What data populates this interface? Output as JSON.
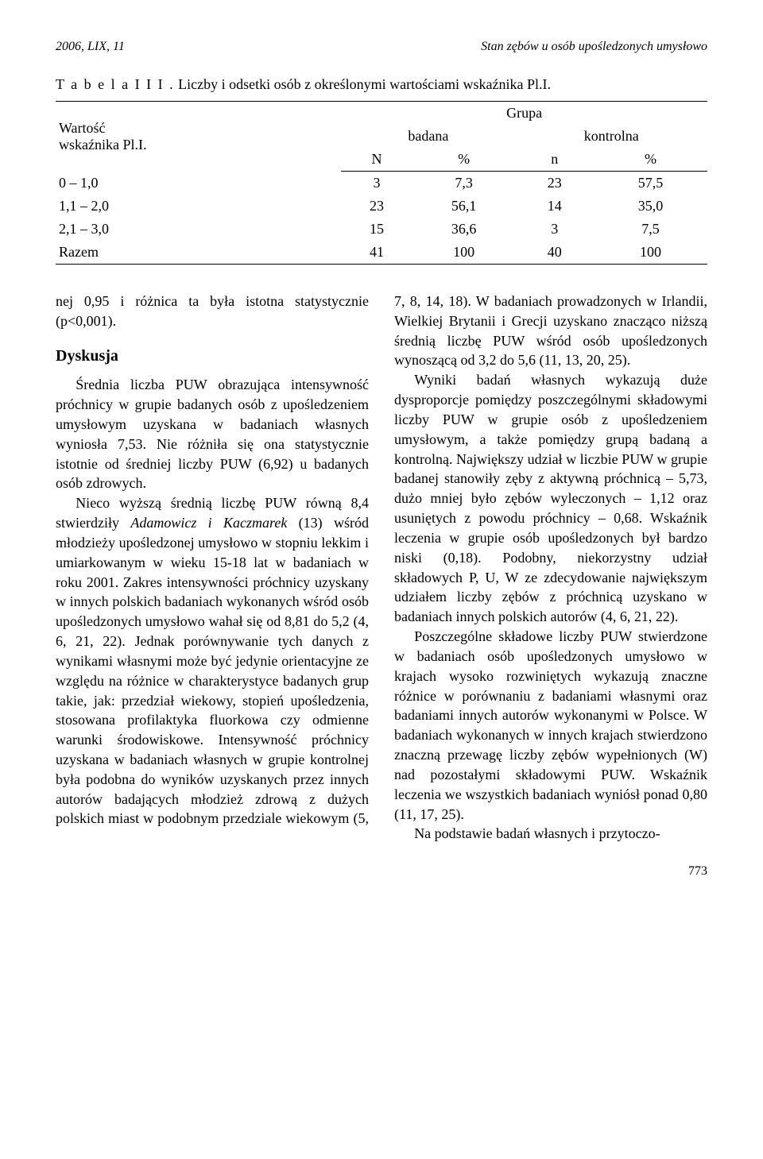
{
  "running_head": {
    "left": "2006, LIX, 11",
    "right": "Stan zębów u osób upośledzonych umysłowo"
  },
  "table": {
    "caption_lead": "T a b e l a  I I I .",
    "caption_rest": " Liczby i odsetki osób z określonymi wartościami wskaźnika Pl.I.",
    "row_label_line1": "Wartość",
    "row_label_line2": "wskaźnika Pl.I.",
    "group_label": "Grupa",
    "col_badana": "badana",
    "col_kontrolna": "kontrolna",
    "sub_N": "N",
    "sub_pct1": "%",
    "sub_n": "n",
    "sub_pct2": "%",
    "rows": [
      {
        "label": "0 – 1,0",
        "N": "3",
        "Npct": "7,3",
        "n": "23",
        "npct": "57,5"
      },
      {
        "label": "1,1 – 2,0",
        "N": "23",
        "Npct": "56,1",
        "n": "14",
        "npct": "35,0"
      },
      {
        "label": "2,1 – 3,0",
        "N": "15",
        "Npct": "36,6",
        "n": "3",
        "npct": "7,5"
      },
      {
        "label": "Razem",
        "N": "41",
        "Npct": "100",
        "n": "40",
        "npct": "100"
      }
    ]
  },
  "body": {
    "lead_fragment": "nej 0,95 i różnica ta była istotna statystycznie (p<0,001).",
    "heading": "Dyskusja",
    "p1a": "Średnia liczba PUW obrazująca intensywność próchnicy w grupie badanych osób z upośledzeniem umysłowym uzyskana w badaniach własnych wyniosła 7,53. Nie różniła się ona statystycznie istotnie od średniej liczby PUW (6,92) u badanych osób zdrowych.",
    "p1b_pre": "Nieco wyższą średnią liczbę PUW równą 8,4 stwierdziły ",
    "p1b_em": "Adamowicz i Kaczmarek",
    "p1b_post": " (13) wśród młodzieży upośledzonej umysłowo w stopniu lekkim i umiarkowanym w wieku 15-18 lat w badaniach w roku 2001. Zakres intensywności próchnicy uzyskany w innych polskich badaniach wykonanych wśród osób upośledzonych umysłowo wahał się od 8,81 do 5,2 (4, 6, 21, 22). Jednak porównywanie tych danych z wynikami własnymi może być jedynie orientacyjne ze względu na różnice w charakterystyce badanych grup takie, jak: przedział wiekowy, stopień upośledzenia, stosowana profilaktyka fluorkowa czy odmienne warunki środowiskowe. Intensywność próchnicy uzyskana w badaniach własnych w grupie kontrolnej była podobna do wyników uzyskanych przez innych autorów badających młodzież zdrową z dużych polskich miast w podobnym przedziale wiekowym (5, 7, 8, 14, 18). W badaniach prowadzonych w Irlandii, Wielkiej Brytanii i Grecji uzyskano znacząco niższą średnią liczbę PUW wśród osób upośledzonych wynoszącą od 3,2 do 5,6 (11, 13, 20, 25).",
    "p2": "Wyniki badań własnych wykazują duże dysproporcje pomiędzy poszczególnymi składowymi liczby PUW w grupie osób z upośledzeniem umysłowym, a także pomiędzy grupą badaną a kontrolną. Największy udział w liczbie PUW w grupie badanej stanowiły zęby z aktywną próchnicą – 5,73, dużo mniej było zębów wyleczonych – 1,12 oraz usuniętych z powodu próchnicy – 0,68. Wskaźnik leczenia w grupie osób upośledzonych był bardzo niski (0,18). Podobny, niekorzystny udział składowych P, U, W ze zdecydowanie największym udziałem liczby zębów z próchnicą uzyskano w badaniach innych polskich autorów (4, 6, 21, 22).",
    "p3": "Poszczególne składowe liczby PUW stwierdzone w badaniach osób upośledzonych umysłowo w krajach wysoko rozwiniętych wykazują znaczne różnice w porównaniu z badaniami własnymi oraz badaniami innych autorów wykonanymi w Polsce. W badaniach wykonanych w innych krajach stwierdzono znaczną przewagę liczby zębów wypełnionych (W) nad pozostałymi składowymi PUW. Wskaźnik leczenia we wszystkich badaniach wyniósł ponad 0,80 (11, 17, 25).",
    "p4": "Na podstawie badań własnych i przytoczo-"
  },
  "page_number": "773"
}
